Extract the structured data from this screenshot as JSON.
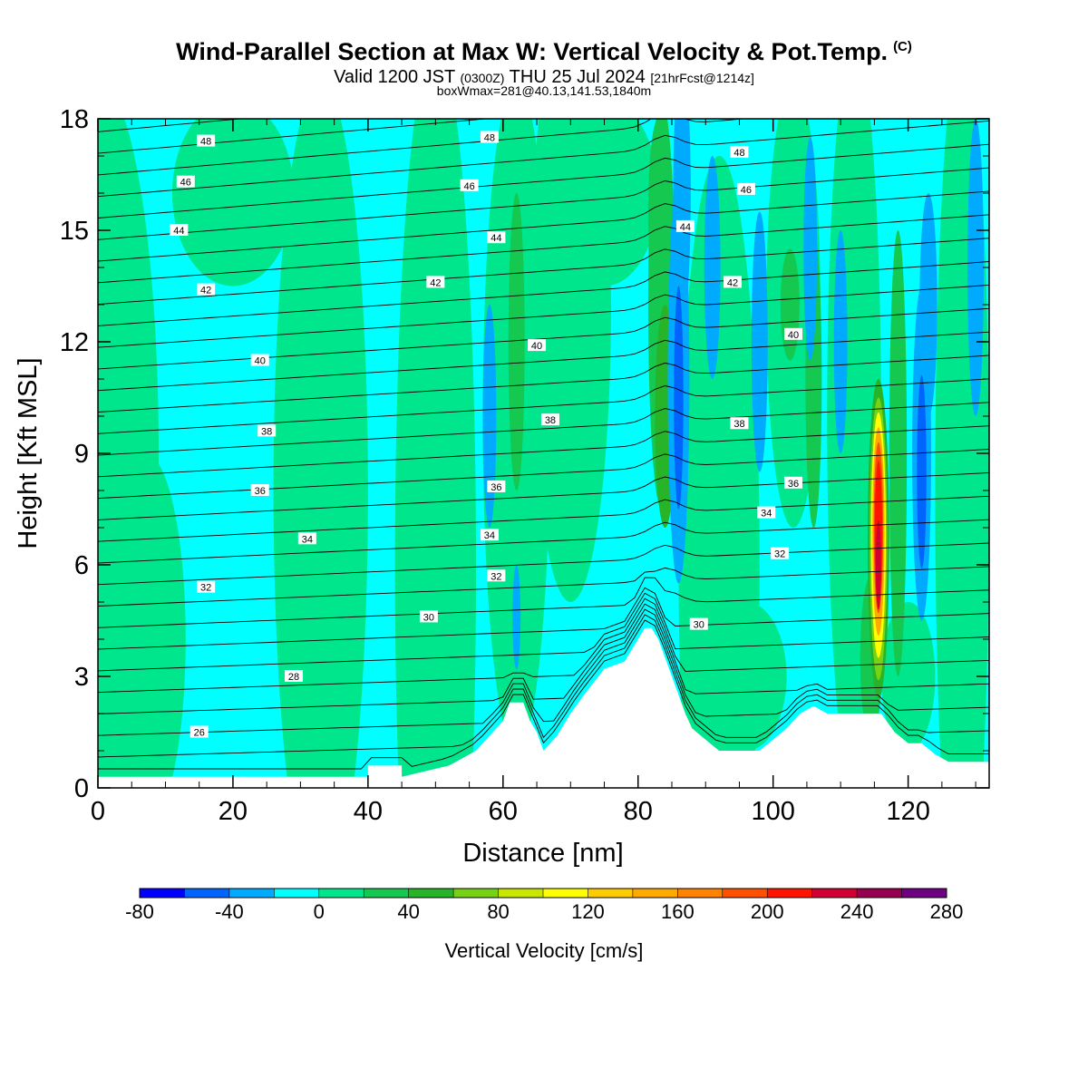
{
  "title": "Wind-Parallel Section at Max W: Vertical Velocity & Pot.Temp.",
  "copyright": "(C)",
  "subtitle": {
    "pre": "Valid 1200 JST",
    "utc": "(0300Z)",
    "date": "THU 25 Jul 2024",
    "fcst": "[21hrFcst@1214z]"
  },
  "info": "boxWmax=281@40.13,141.53,1840m",
  "chart_data": {
    "type": "heatmap",
    "title": "Wind-Parallel Section at Max W: Vertical Velocity & Pot.Temp.",
    "xlabel": "Distance [nm]",
    "ylabel": "Height [Kft MSL]",
    "xlim": [
      0,
      132
    ],
    "ylim": [
      0,
      18
    ],
    "x_ticks": [
      0,
      20,
      40,
      60,
      80,
      100,
      120
    ],
    "y_ticks": [
      0,
      3,
      6,
      9,
      12,
      15,
      18
    ],
    "colorbar": {
      "label": "Vertical Velocity [cm/s]",
      "ticks": [
        -80,
        -40,
        0,
        40,
        80,
        120,
        160,
        200,
        240,
        280
      ],
      "levels": [
        -80,
        -60,
        -40,
        -20,
        0,
        20,
        40,
        60,
        80,
        100,
        120,
        140,
        160,
        180,
        200,
        220,
        240,
        260,
        280
      ],
      "colors": [
        "#0000ff",
        "#0064ff",
        "#00aaff",
        "#00ffff",
        "#00e68c",
        "#14c850",
        "#28b428",
        "#78d214",
        "#c8e600",
        "#ffff00",
        "#ffcc00",
        "#ffaa00",
        "#ff8200",
        "#ff5000",
        "#ff1400",
        "#d20032",
        "#960050",
        "#6e0082"
      ]
    },
    "theta_contours": {
      "name": "Pot.Temp.",
      "labels": [
        {
          "value": 48,
          "x": 16,
          "y": 17.4
        },
        {
          "value": 48,
          "x": 58,
          "y": 17.5
        },
        {
          "value": 48,
          "x": 95,
          "y": 17.1
        },
        {
          "value": 46,
          "x": 13,
          "y": 16.3
        },
        {
          "value": 46,
          "x": 55,
          "y": 16.2
        },
        {
          "value": 46,
          "x": 96,
          "y": 16.1
        },
        {
          "value": 44,
          "x": 12,
          "y": 15.0
        },
        {
          "value": 44,
          "x": 59,
          "y": 14.8
        },
        {
          "value": 44,
          "x": 87,
          "y": 15.1
        },
        {
          "value": 42,
          "x": 16,
          "y": 13.4
        },
        {
          "value": 42,
          "x": 50,
          "y": 13.6
        },
        {
          "value": 42,
          "x": 94,
          "y": 13.6
        },
        {
          "value": 40,
          "x": 24,
          "y": 11.5
        },
        {
          "value": 40,
          "x": 65,
          "y": 11.9
        },
        {
          "value": 40,
          "x": 103,
          "y": 12.2
        },
        {
          "value": 38,
          "x": 25,
          "y": 9.6
        },
        {
          "value": 38,
          "x": 67,
          "y": 9.9
        },
        {
          "value": 38,
          "x": 95,
          "y": 9.8
        },
        {
          "value": 36,
          "x": 24,
          "y": 8.0
        },
        {
          "value": 36,
          "x": 59,
          "y": 8.1
        },
        {
          "value": 36,
          "x": 103,
          "y": 8.2
        },
        {
          "value": 34,
          "x": 31,
          "y": 6.7
        },
        {
          "value": 34,
          "x": 58,
          "y": 6.8
        },
        {
          "value": 34,
          "x": 99,
          "y": 7.4
        },
        {
          "value": 32,
          "x": 16,
          "y": 5.4
        },
        {
          "value": 32,
          "x": 59,
          "y": 5.7
        },
        {
          "value": 32,
          "x": 101,
          "y": 6.3
        },
        {
          "value": 30,
          "x": 49,
          "y": 4.6
        },
        {
          "value": 30,
          "x": 89,
          "y": 4.4
        },
        {
          "value": 28,
          "x": 29,
          "y": 3.0
        },
        {
          "value": 26,
          "x": 15,
          "y": 1.5
        }
      ]
    },
    "terrain_kft": {
      "x": [
        0,
        40,
        40,
        45,
        45,
        52,
        56,
        60,
        61,
        63,
        64,
        65,
        66,
        68,
        70,
        72,
        75,
        78,
        80,
        81,
        82,
        83,
        84,
        85,
        86,
        87,
        88,
        90,
        92,
        94,
        96,
        98,
        100,
        102,
        104,
        106,
        108,
        110,
        112,
        114,
        116,
        118,
        120,
        122,
        124,
        126,
        128,
        130,
        132
      ],
      "y": [
        0.3,
        0.3,
        0.6,
        0.6,
        0.3,
        0.6,
        1.0,
        1.8,
        2.3,
        2.3,
        1.8,
        1.5,
        1.0,
        1.4,
        2.0,
        2.5,
        3.2,
        3.4,
        4.0,
        4.3,
        4.3,
        4.0,
        3.5,
        3.0,
        2.5,
        2.0,
        1.6,
        1.3,
        1.0,
        1.0,
        1.0,
        1.0,
        1.3,
        1.6,
        2.0,
        2.2,
        2.0,
        2.0,
        2.0,
        2.0,
        2.0,
        1.5,
        1.2,
        1.2,
        0.9,
        0.7,
        0.7,
        0.7,
        0.7
      ]
    },
    "max_w_cms": 281,
    "max_w_location": {
      "x": 115.5,
      "y": 7.0
    },
    "grid": false
  }
}
